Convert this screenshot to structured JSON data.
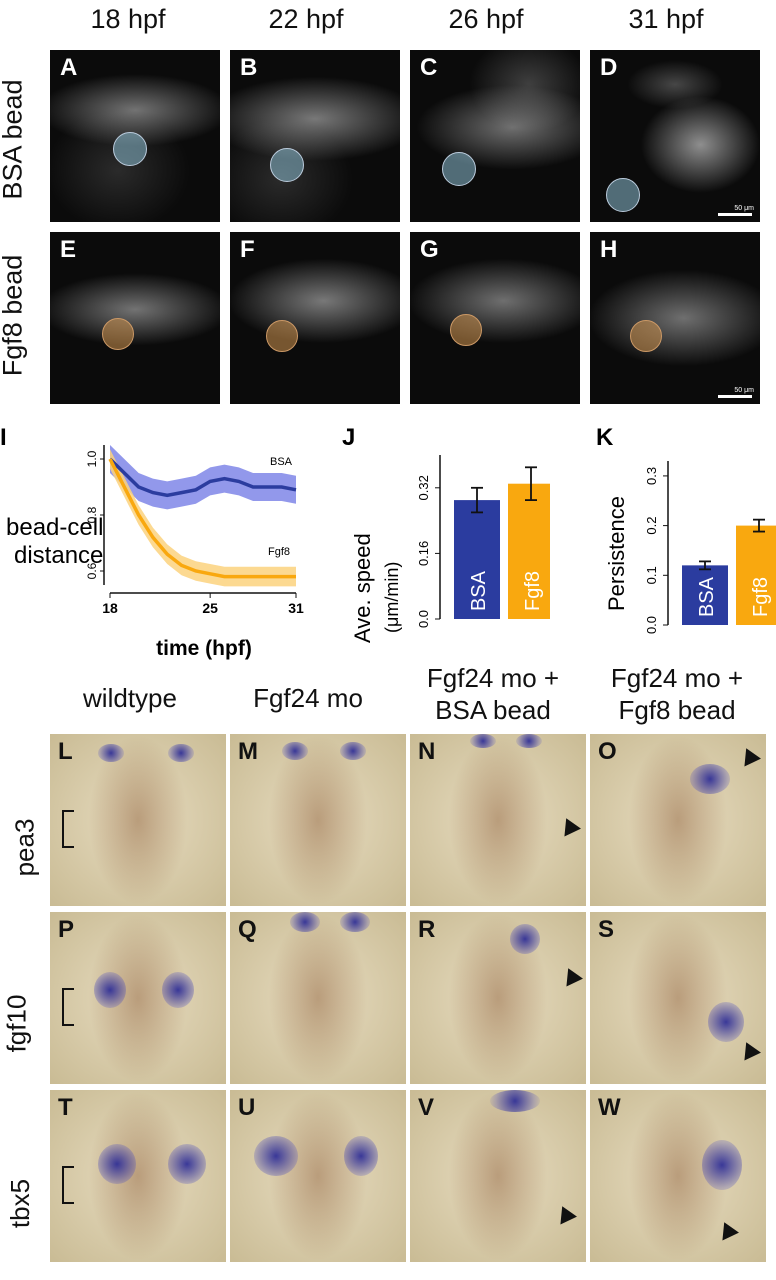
{
  "time_headers": [
    "18 hpf",
    "22 hpf",
    "26 hpf",
    "31 hpf"
  ],
  "row_labels": {
    "bsa": "BSA bead",
    "fgf8": "Fgf8 bead"
  },
  "panel_letters_top": [
    "A",
    "B",
    "C",
    "D",
    "E",
    "F",
    "G",
    "H"
  ],
  "scale_bar_label": "50 μm",
  "chart_I": {
    "letter": "I",
    "ylabel_line1": "bead-cell",
    "ylabel_line2": "distance",
    "xlabel": "time (hpf)",
    "xticks": [
      "18",
      "25",
      "31"
    ],
    "yticks": [
      "1.0",
      "0.8",
      "0.6"
    ],
    "series_labels": {
      "bsa": "BSA",
      "fgf8": "Fgf8"
    }
  },
  "chart_J": {
    "letter": "J",
    "ylabel_line1": "Ave. speed",
    "ylabel_line2": "(μm/min)",
    "yticks": [
      "0.32",
      "0.16",
      "0.0"
    ],
    "bar_labels": [
      "BSA",
      "Fgf8"
    ]
  },
  "chart_K": {
    "letter": "K",
    "ylabel": "Persistence",
    "yticks": [
      "0.3",
      "0.2",
      "0.1",
      "0.0"
    ],
    "bar_labels": [
      "BSA",
      "Fgf8"
    ]
  },
  "chart_data": [
    {
      "type": "line",
      "xlabel": "time (hpf)",
      "ylabel": "bead-cell distance",
      "xlim": [
        18,
        31
      ],
      "ylim": [
        0.55,
        1.05
      ],
      "series": [
        {
          "name": "BSA",
          "x": [
            18,
            19,
            20,
            21,
            22,
            23,
            24,
            25,
            26,
            27,
            28,
            29,
            30,
            31
          ],
          "y": [
            1.0,
            0.95,
            0.9,
            0.88,
            0.87,
            0.88,
            0.89,
            0.92,
            0.93,
            0.92,
            0.9,
            0.9,
            0.9,
            0.89
          ]
        },
        {
          "name": "Fgf8",
          "x": [
            18,
            19,
            20,
            21,
            22,
            23,
            24,
            25,
            26,
            27,
            28,
            29,
            30,
            31
          ],
          "y": [
            1.0,
            0.9,
            0.8,
            0.72,
            0.66,
            0.62,
            0.6,
            0.59,
            0.58,
            0.58,
            0.58,
            0.58,
            0.58,
            0.58
          ]
        }
      ]
    },
    {
      "type": "bar",
      "ylabel": "Ave. speed (μm/min)",
      "categories": [
        "BSA",
        "Fgf8"
      ],
      "values": [
        0.29,
        0.33
      ],
      "errors": [
        0.03,
        0.04
      ],
      "ylim": [
        0,
        0.4
      ],
      "colors": [
        "#2b3c9f",
        "#f9a80f"
      ]
    },
    {
      "type": "bar",
      "ylabel": "Persistence",
      "categories": [
        "BSA",
        "Fgf8"
      ],
      "values": [
        0.12,
        0.2
      ],
      "errors": [
        0.008,
        0.012
      ],
      "ylim": [
        0,
        0.33
      ],
      "colors": [
        "#2b3c9f",
        "#f9a80f"
      ]
    }
  ],
  "condition_headers": [
    {
      "line1": "wildtype",
      "line2": ""
    },
    {
      "line1": "Fgf24 mo",
      "line2": ""
    },
    {
      "line1": "Fgf24 mo +",
      "line2": "BSA bead"
    },
    {
      "line1": "Fgf24 mo +",
      "line2": "Fgf8 bead"
    }
  ],
  "gene_labels": [
    "pea3",
    "fgf10",
    "tbx5"
  ],
  "panel_letters_bottom": [
    "L",
    "M",
    "N",
    "O",
    "P",
    "Q",
    "R",
    "S",
    "T",
    "U",
    "V",
    "W"
  ],
  "colors": {
    "bsa": "#2b3c9f",
    "fgf8": "#f9a80f",
    "bsa_band": "#7f86e8",
    "fgf8_band": "#fcd27e"
  }
}
